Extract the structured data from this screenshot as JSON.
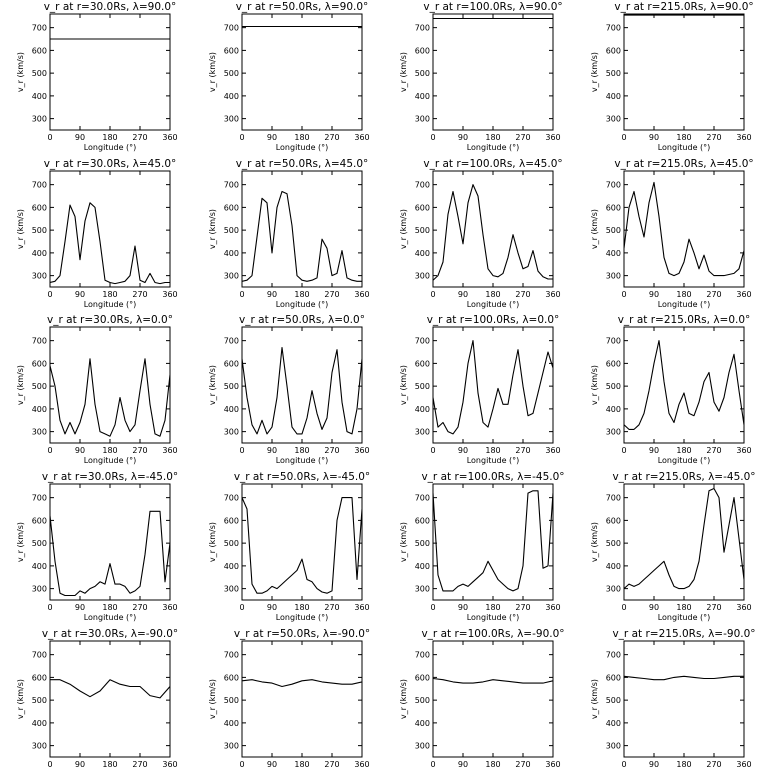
{
  "chart_data": {
    "type": "line",
    "layout": "small-multiples-5x4",
    "common": {
      "xlabel": "Longitude (°)",
      "ylabel": "v_r (km/s)",
      "xlim": [
        0,
        360
      ],
      "ylim": [
        250,
        760
      ],
      "xticks": [
        "0",
        "90",
        "180",
        "270",
        "360"
      ],
      "yticks": [
        "300",
        "400",
        "500",
        "600",
        "700"
      ],
      "grid": false,
      "line_color": "#000000"
    },
    "panels": [
      {
        "title": "v_r at r=30.0Rs, λ=90.0°",
        "x": [
          0,
          360
        ],
        "y": [
          650,
          650
        ]
      },
      {
        "title": "v_r at r=50.0Rs, λ=90.0°",
        "x": [
          0,
          360
        ],
        "y": [
          705,
          705
        ]
      },
      {
        "title": "v_r at r=100.0Rs, λ=90.0°",
        "x": [
          0,
          360
        ],
        "y": [
          740,
          740
        ]
      },
      {
        "title": "v_r at r=215.0Rs, λ=90.0°",
        "x": [
          0,
          360
        ],
        "y": [
          755,
          755
        ]
      },
      {
        "title": "v_r at r=30.0Rs, λ=45.0°",
        "x": [
          0,
          15,
          30,
          45,
          60,
          75,
          90,
          105,
          120,
          135,
          150,
          165,
          180,
          195,
          210,
          225,
          240,
          255,
          270,
          285,
          300,
          315,
          330,
          345,
          360
        ],
        "y": [
          270,
          275,
          300,
          450,
          610,
          560,
          370,
          540,
          620,
          600,
          450,
          280,
          270,
          265,
          270,
          275,
          300,
          430,
          280,
          270,
          310,
          270,
          265,
          270,
          270
        ]
      },
      {
        "title": "v_r at r=50.0Rs, λ=45.0°",
        "x": [
          0,
          15,
          30,
          45,
          60,
          75,
          90,
          105,
          120,
          135,
          150,
          165,
          180,
          195,
          210,
          225,
          240,
          255,
          270,
          285,
          300,
          315,
          330,
          345,
          360
        ],
        "y": [
          275,
          280,
          300,
          470,
          640,
          620,
          400,
          600,
          670,
          660,
          520,
          300,
          280,
          275,
          280,
          290,
          460,
          420,
          300,
          310,
          410,
          290,
          280,
          275,
          275
        ]
      },
      {
        "title": "v_r at r=100.0Rs, λ=45.0°",
        "x": [
          0,
          15,
          30,
          45,
          60,
          75,
          90,
          105,
          120,
          135,
          150,
          165,
          180,
          195,
          210,
          225,
          240,
          255,
          270,
          285,
          300,
          315,
          330,
          345,
          360
        ],
        "y": [
          280,
          300,
          360,
          570,
          670,
          560,
          440,
          620,
          700,
          650,
          480,
          330,
          300,
          295,
          310,
          380,
          480,
          400,
          330,
          340,
          410,
          320,
          295,
          285,
          285
        ]
      },
      {
        "title": "v_r at r=215.0Rs, λ=45.0°",
        "x": [
          0,
          15,
          30,
          45,
          60,
          75,
          90,
          105,
          120,
          135,
          150,
          165,
          180,
          195,
          210,
          225,
          240,
          255,
          270,
          285,
          300,
          315,
          330,
          345,
          360
        ],
        "y": [
          420,
          600,
          670,
          560,
          470,
          620,
          710,
          560,
          380,
          310,
          300,
          310,
          360,
          460,
          400,
          330,
          390,
          320,
          300,
          300,
          300,
          305,
          310,
          330,
          410
        ]
      },
      {
        "title": "v_r at r=30.0Rs, λ=0.0°",
        "x": [
          0,
          15,
          30,
          45,
          60,
          75,
          90,
          105,
          120,
          135,
          150,
          165,
          180,
          195,
          210,
          225,
          240,
          255,
          270,
          285,
          300,
          315,
          330,
          345,
          360
        ],
        "y": [
          590,
          500,
          350,
          290,
          340,
          290,
          340,
          420,
          620,
          420,
          300,
          290,
          280,
          330,
          450,
          350,
          300,
          330,
          480,
          620,
          420,
          290,
          280,
          350,
          550
        ]
      },
      {
        "title": "v_r at r=50.0Rs, λ=0.0°",
        "x": [
          0,
          15,
          30,
          45,
          60,
          75,
          90,
          105,
          120,
          135,
          150,
          165,
          180,
          195,
          210,
          225,
          240,
          255,
          270,
          285,
          300,
          315,
          330,
          345,
          360
        ],
        "y": [
          620,
          450,
          330,
          290,
          350,
          290,
          320,
          450,
          670,
          500,
          320,
          290,
          290,
          360,
          480,
          380,
          310,
          360,
          560,
          660,
          430,
          300,
          290,
          400,
          620
        ]
      },
      {
        "title": "v_r at r=100.0Rs, λ=0.0°",
        "x": [
          0,
          15,
          30,
          45,
          60,
          75,
          90,
          105,
          120,
          135,
          150,
          165,
          180,
          195,
          210,
          225,
          240,
          255,
          270,
          285,
          300,
          315,
          330,
          345,
          360
        ],
        "y": [
          450,
          320,
          340,
          300,
          290,
          320,
          430,
          600,
          700,
          470,
          340,
          320,
          400,
          490,
          420,
          420,
          550,
          660,
          500,
          370,
          380,
          470,
          560,
          650,
          580
        ]
      },
      {
        "title": "v_r at r=215.0Rs, λ=0.0°",
        "x": [
          0,
          15,
          30,
          45,
          60,
          75,
          90,
          105,
          120,
          135,
          150,
          165,
          180,
          195,
          210,
          225,
          240,
          255,
          270,
          285,
          300,
          315,
          330,
          345,
          360
        ],
        "y": [
          330,
          310,
          310,
          330,
          380,
          480,
          600,
          700,
          520,
          380,
          340,
          420,
          470,
          380,
          370,
          430,
          520,
          560,
          430,
          390,
          450,
          560,
          640,
          480,
          330
        ]
      },
      {
        "title": "v_r at r=30.0Rs, λ=-45.0°",
        "x": [
          0,
          15,
          30,
          45,
          60,
          75,
          90,
          105,
          120,
          135,
          150,
          165,
          180,
          195,
          210,
          225,
          240,
          255,
          270,
          285,
          300,
          315,
          330,
          345,
          360
        ],
        "y": [
          620,
          420,
          280,
          270,
          270,
          270,
          290,
          280,
          300,
          310,
          330,
          320,
          410,
          320,
          320,
          310,
          280,
          290,
          310,
          450,
          640,
          640,
          640,
          330,
          500
        ]
      },
      {
        "title": "v_r at r=50.0Rs, λ=-45.0°",
        "x": [
          0,
          15,
          30,
          45,
          60,
          75,
          90,
          105,
          120,
          135,
          150,
          165,
          180,
          195,
          210,
          225,
          240,
          255,
          270,
          285,
          300,
          315,
          330,
          345,
          360
        ],
        "y": [
          700,
          650,
          320,
          280,
          280,
          290,
          310,
          300,
          320,
          340,
          360,
          380,
          430,
          340,
          330,
          300,
          285,
          280,
          290,
          600,
          700,
          700,
          700,
          340,
          650
        ]
      },
      {
        "title": "v_r at r=100.0Rs, λ=-45.0°",
        "x": [
          0,
          15,
          30,
          45,
          60,
          75,
          90,
          105,
          120,
          135,
          150,
          165,
          180,
          195,
          210,
          225,
          240,
          255,
          270,
          285,
          300,
          315,
          330,
          345,
          360
        ],
        "y": [
          720,
          360,
          290,
          290,
          290,
          310,
          320,
          310,
          330,
          350,
          370,
          420,
          380,
          340,
          320,
          300,
          290,
          300,
          400,
          720,
          730,
          730,
          390,
          400,
          720
        ]
      },
      {
        "title": "v_r at r=215.0Rs, λ=-45.0°",
        "x": [
          0,
          15,
          30,
          45,
          60,
          75,
          90,
          105,
          120,
          135,
          150,
          165,
          180,
          195,
          210,
          225,
          240,
          255,
          270,
          285,
          300,
          315,
          330,
          345,
          360
        ],
        "y": [
          300,
          320,
          310,
          320,
          340,
          360,
          380,
          400,
          420,
          360,
          310,
          300,
          300,
          310,
          340,
          420,
          580,
          730,
          740,
          700,
          460,
          580,
          700,
          520,
          340
        ]
      },
      {
        "title": "v_r at r=30.0Rs, λ=-90.0°",
        "x": [
          0,
          30,
          60,
          90,
          120,
          150,
          180,
          210,
          240,
          270,
          300,
          330,
          360
        ],
        "y": [
          590,
          590,
          570,
          540,
          515,
          540,
          590,
          570,
          560,
          560,
          520,
          510,
          560
        ]
      },
      {
        "title": "v_r at r=50.0Rs, λ=-90.0°",
        "x": [
          0,
          30,
          60,
          90,
          120,
          150,
          180,
          210,
          240,
          270,
          300,
          330,
          360
        ],
        "y": [
          585,
          590,
          580,
          575,
          560,
          570,
          585,
          590,
          580,
          575,
          570,
          570,
          580
        ]
      },
      {
        "title": "v_r at r=100.0Rs, λ=-90.0°",
        "x": [
          0,
          30,
          60,
          90,
          120,
          150,
          180,
          210,
          240,
          270,
          300,
          330,
          360
        ],
        "y": [
          595,
          590,
          580,
          575,
          575,
          580,
          590,
          585,
          580,
          575,
          575,
          575,
          585
        ]
      },
      {
        "title": "v_r at r=215.0Rs, λ=-90.0°",
        "x": [
          0,
          30,
          60,
          90,
          120,
          150,
          180,
          210,
          240,
          270,
          300,
          330,
          360
        ],
        "y": [
          605,
          600,
          595,
          590,
          590,
          600,
          605,
          600,
          595,
          595,
          600,
          605,
          605
        ]
      }
    ]
  }
}
